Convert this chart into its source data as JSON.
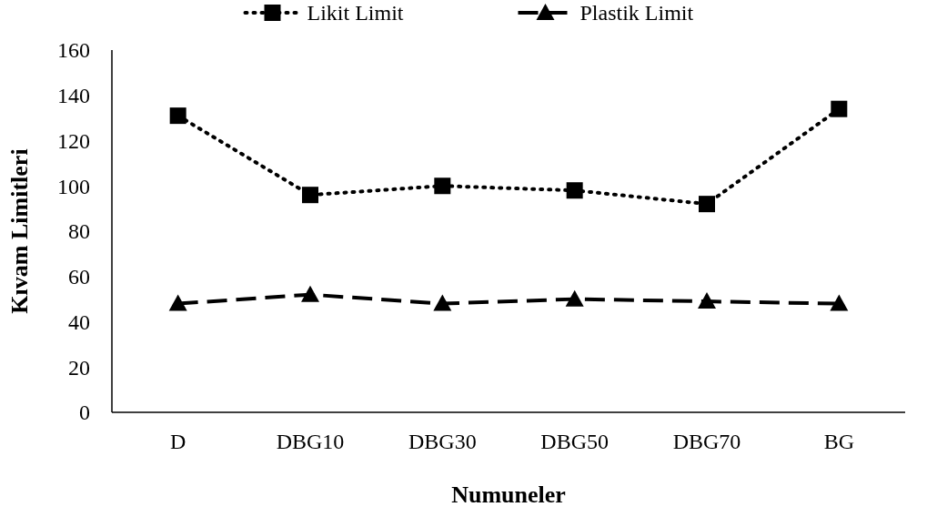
{
  "chart_data": {
    "type": "line",
    "xlabel": "Numuneler",
    "ylabel": "Kıvam Limitleri",
    "categories": [
      "D",
      "DBG10",
      "DBG30",
      "DBG50",
      "DBG70",
      "BG"
    ],
    "series": [
      {
        "name": "Likit Limit",
        "color": "#000000",
        "marker": "square",
        "line_style": "dotted",
        "values": [
          131,
          96,
          100,
          98,
          92,
          134
        ]
      },
      {
        "name": "Plastik Limit",
        "color": "#000000",
        "marker": "triangle",
        "line_style": "dashed",
        "values": [
          48,
          52,
          48,
          50,
          49,
          48
        ]
      }
    ],
    "ylim": [
      0,
      160
    ],
    "yticks": [
      0,
      20,
      40,
      60,
      80,
      100,
      120,
      140,
      160
    ],
    "grid": false,
    "legend": "top"
  }
}
